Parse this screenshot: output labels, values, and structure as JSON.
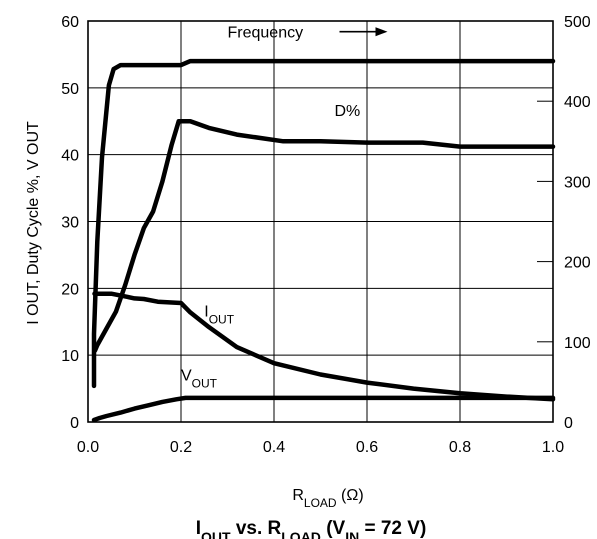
{
  "chart_data": {
    "type": "line",
    "title": {
      "a": "I",
      "a_sub": "OUT",
      "b": " vs. R",
      "b_sub": "LOAD",
      "c": " (V",
      "c_sub": "IN",
      "d": " = 72 V)"
    },
    "xlabel": {
      "main": "R",
      "sub": "LOAD",
      "unit": " (Ω)"
    },
    "ylabel": "I OUT, Duty Cycle %, V OUT",
    "xlim": [
      0,
      1
    ],
    "ylim": [
      0,
      60
    ],
    "y2lim": [
      0,
      500
    ],
    "grid": true,
    "x_ticks": [
      {
        "v": 0,
        "label": "0.0"
      },
      {
        "v": 0.2,
        "label": "0.2"
      },
      {
        "v": 0.4,
        "label": "0.4"
      },
      {
        "v": 0.6,
        "label": "0.6"
      },
      {
        "v": 0.8,
        "label": "0.8"
      },
      {
        "v": 1.0,
        "label": "1.0"
      }
    ],
    "y_ticks": [
      {
        "v": 0,
        "label": "0"
      },
      {
        "v": 10,
        "label": "10"
      },
      {
        "v": 20,
        "label": "20"
      },
      {
        "v": 30,
        "label": "30"
      },
      {
        "v": 40,
        "label": "40"
      },
      {
        "v": 50,
        "label": "50"
      },
      {
        "v": 60,
        "label": "60"
      }
    ],
    "y2_ticks": [
      {
        "v": 0,
        "label": "0"
      },
      {
        "v": 100,
        "label": "100"
      },
      {
        "v": 200,
        "label": "200"
      },
      {
        "v": 300,
        "label": "300"
      },
      {
        "v": 400,
        "label": "400"
      },
      {
        "v": 500,
        "label": "500"
      }
    ],
    "series": [
      {
        "name": "Frequency",
        "axis": "right",
        "label": {
          "main": "Frequency",
          "sub": "",
          "x": 0.3,
          "y": 57.5
        },
        "arrow": true,
        "x": [
          0.013,
          0.013,
          0.015,
          0.02,
          0.03,
          0.045,
          0.055,
          0.07,
          0.1,
          0.15,
          0.2,
          0.22,
          0.3,
          0.5,
          0.7,
          0.9,
          1.0
        ],
        "y": [
          45,
          110,
          145,
          225,
          330,
          420,
          440,
          445,
          445,
          445,
          445,
          450,
          450,
          450,
          450,
          450,
          450
        ]
      },
      {
        "name": "D%",
        "axis": "left",
        "label": {
          "main": "D%",
          "sub": "",
          "x": 0.53,
          "y": 45.8
        },
        "x": [
          0.015,
          0.02,
          0.04,
          0.06,
          0.08,
          0.1,
          0.12,
          0.14,
          0.16,
          0.18,
          0.195,
          0.22,
          0.26,
          0.32,
          0.42,
          0.5,
          0.6,
          0.72,
          0.8,
          1.0
        ],
        "y": [
          10.7,
          11.5,
          14,
          16.5,
          20.5,
          25,
          29,
          31.5,
          36,
          41.5,
          45,
          45,
          44,
          43,
          42,
          42,
          41.8,
          41.8,
          41.2,
          41.2
        ]
      },
      {
        "name": "IOUT",
        "axis": "left",
        "label": {
          "main": "I",
          "sub": "OUT",
          "x": 0.25,
          "y": 15.8
        },
        "x": [
          0.014,
          0.02,
          0.05,
          0.08,
          0.1,
          0.12,
          0.15,
          0.2,
          0.22,
          0.26,
          0.32,
          0.4,
          0.5,
          0.6,
          0.7,
          0.8,
          0.9,
          1.0
        ],
        "y": [
          19.2,
          19.2,
          19.2,
          18.8,
          18.5,
          18.4,
          18.0,
          17.8,
          16.4,
          14.2,
          11.2,
          8.8,
          7.1,
          5.9,
          5.0,
          4.3,
          3.8,
          3.4
        ]
      },
      {
        "name": "VOUT",
        "axis": "left",
        "label": {
          "main": "V",
          "sub": "OUT",
          "x": 0.2,
          "y": 6.2
        },
        "x": [
          0.013,
          0.025,
          0.04,
          0.07,
          0.1,
          0.13,
          0.16,
          0.19,
          0.21,
          0.4,
          0.6,
          0.8,
          1.0
        ],
        "y": [
          0.3,
          0.6,
          0.9,
          1.4,
          2.0,
          2.5,
          3.0,
          3.4,
          3.6,
          3.6,
          3.6,
          3.6,
          3.6
        ]
      }
    ]
  }
}
